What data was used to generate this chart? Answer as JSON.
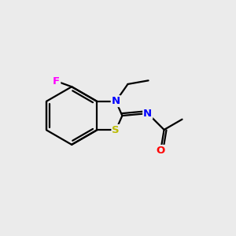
{
  "bg_color": "#ebebeb",
  "atom_colors": {
    "C": "#000000",
    "N": "#0000ff",
    "S": "#bbbb00",
    "O": "#ff0000",
    "F": "#ff00ff"
  },
  "bond_color": "#000000",
  "bond_width": 1.6,
  "figsize": [
    3.0,
    3.0
  ],
  "dpi": 100
}
